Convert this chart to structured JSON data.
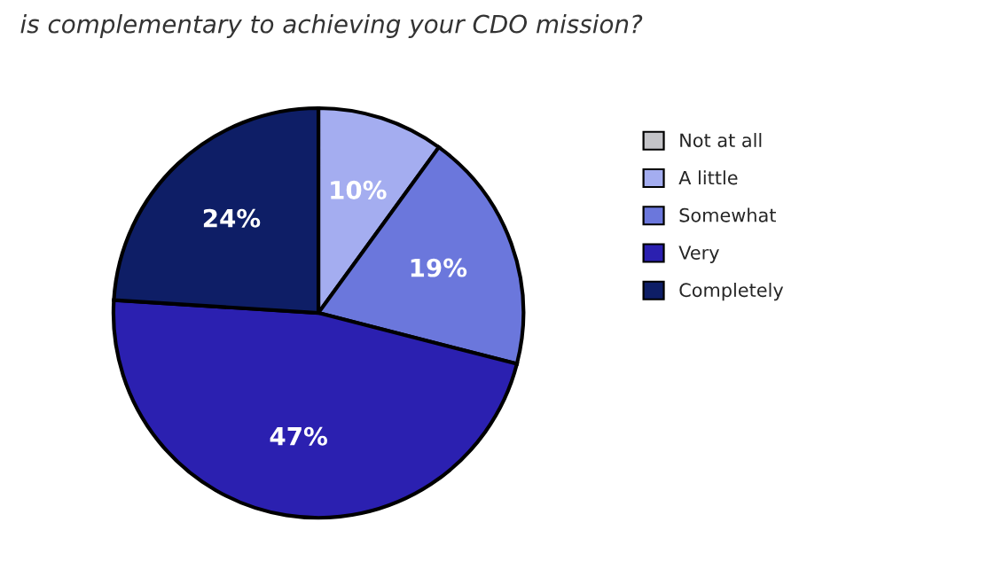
{
  "chart_data": {
    "type": "pie",
    "title": "is complementary to achieving your CDO mission?",
    "categories": [
      "Not at all",
      "A little",
      "Somewhat",
      "Very",
      "Completely"
    ],
    "values": [
      0,
      10,
      19,
      47,
      24
    ],
    "colors": [
      "#c4c4c8",
      "#a4adf0",
      "#6b77dc",
      "#2b20b0",
      "#0e1e66"
    ],
    "value_labels": [
      null,
      "10%",
      "19%",
      "47%",
      "24%"
    ],
    "legend": "right"
  }
}
